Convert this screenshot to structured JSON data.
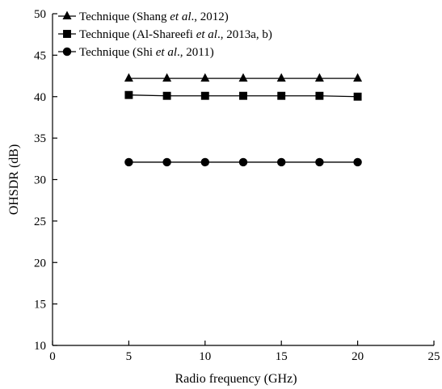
{
  "chart_data": {
    "type": "line",
    "xlabel": "Radio frequency (GHz)",
    "ylabel": "OHSDR (dB)",
    "xlim": [
      0,
      25
    ],
    "ylim": [
      10,
      50
    ],
    "xticks": [
      0,
      5,
      10,
      15,
      20,
      25
    ],
    "yticks": [
      10,
      15,
      20,
      25,
      30,
      35,
      40,
      45,
      50
    ],
    "grid": false,
    "legend_position": "top-left",
    "x": [
      5,
      7.5,
      10,
      12.5,
      15,
      17.5,
      20
    ],
    "series": [
      {
        "name": "Technique (Shang et al., 2012)",
        "legend_parts": [
          {
            "text": "Technique (Shang ",
            "italic": false
          },
          {
            "text": "et al",
            "italic": true
          },
          {
            "text": "., 2012)",
            "italic": false
          }
        ],
        "marker": "triangle",
        "values": [
          42.2,
          42.2,
          42.2,
          42.2,
          42.2,
          42.2,
          42.2
        ]
      },
      {
        "name": "Technique (Al-Shareefi et al., 2013a, b)",
        "legend_parts": [
          {
            "text": "Technique (Al-Shareefi ",
            "italic": false
          },
          {
            "text": "et al",
            "italic": true
          },
          {
            "text": "., 2013a, b)",
            "italic": false
          }
        ],
        "marker": "square",
        "values": [
          40.2,
          40.1,
          40.1,
          40.1,
          40.1,
          40.1,
          40.0
        ]
      },
      {
        "name": "Technique (Shi et al., 2011)",
        "legend_parts": [
          {
            "text": "Technique (Shi ",
            "italic": false
          },
          {
            "text": "et al",
            "italic": true
          },
          {
            "text": "., 2011)",
            "italic": false
          }
        ],
        "marker": "circle",
        "values": [
          32.1,
          32.1,
          32.1,
          32.1,
          32.1,
          32.1,
          32.1
        ]
      }
    ],
    "colors": {
      "line": "#000000",
      "marker": "#000000"
    }
  }
}
